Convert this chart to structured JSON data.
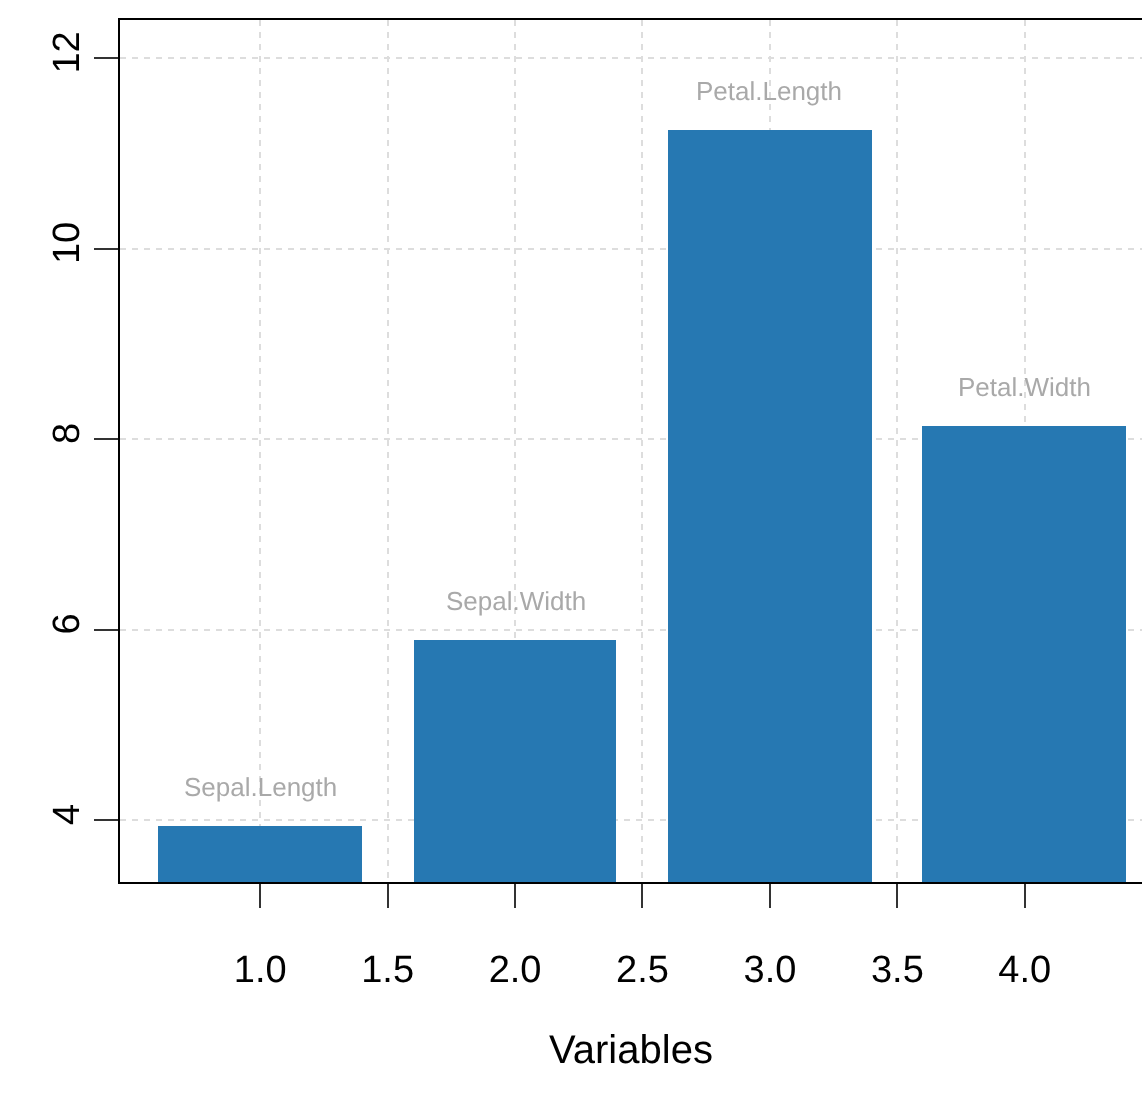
{
  "chart_data": {
    "type": "bar",
    "xlabel": "Variables",
    "x": [
      1,
      2,
      3,
      4
    ],
    "values": [
      3.94,
      5.9,
      11.24,
      8.13
    ],
    "color": "#2678b2",
    "xlim": [
      0.45,
      4.46
    ],
    "xticks": [
      {
        "value": 1,
        "label": "1.0"
      },
      1.5,
      {
        "value": 2,
        "label": "2.0"
      },
      2.5,
      {
        "value": 3,
        "label": "3.0"
      },
      3.5,
      {
        "value": 4,
        "label": "4.0"
      }
    ],
    "ylim": [
      3.35,
      12.4
    ],
    "yticks": [
      4,
      6,
      8,
      10,
      12
    ],
    "grid": true,
    "annotations": [
      {
        "text": "Sepal.Length",
        "x": 1,
        "y": 3.94
      },
      {
        "text": "Sepal.Width",
        "x": 2,
        "y": 5.9
      },
      {
        "text": "Petal.Length",
        "x": 3,
        "y": 11.24
      },
      {
        "text": "Petal.Width",
        "x": 4,
        "y": 8.13
      }
    ]
  }
}
